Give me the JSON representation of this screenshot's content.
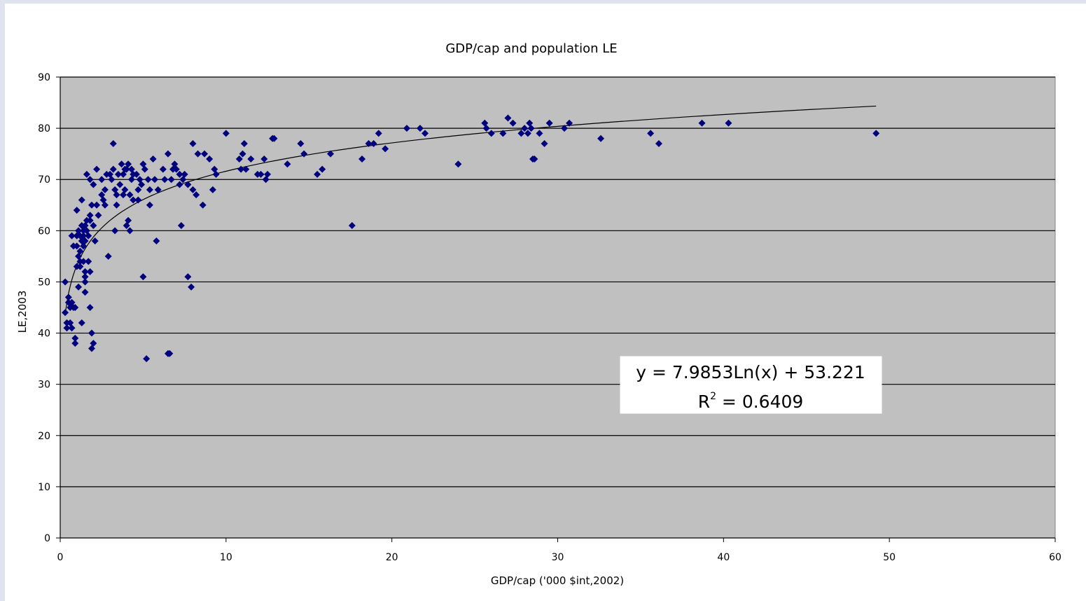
{
  "chart_data": {
    "type": "scatter",
    "title": "GDP/cap and population LE",
    "xlabel": "GDP/cap ('000 $int,2002)",
    "ylabel": "LE,2003",
    "xlim": [
      0,
      60
    ],
    "ylim": [
      0,
      90
    ],
    "x_ticks": [
      "0",
      "10",
      "20",
      "30",
      "40",
      "50",
      "60"
    ],
    "y_ticks": [
      "0",
      "10",
      "20",
      "30",
      "40",
      "50",
      "60",
      "70",
      "80",
      "90"
    ],
    "grid": "horizontal",
    "legend": "none",
    "colors": {
      "marker": "#00007f",
      "plot_bg": "#c0c0c0",
      "grid": "#000000",
      "trendline": "#000000"
    },
    "trendline": {
      "type": "logarithmic",
      "a": 7.9853,
      "b": 53.221,
      "r2": 0.6409,
      "equation_label": "y = 7.9853Ln(x) + 53.221",
      "r2_label_prefix": "R",
      "r2_label_exponent": "2",
      "r2_label_suffix": " = 0.6409"
    },
    "points": [
      [
        0.3,
        44
      ],
      [
        0.3,
        50
      ],
      [
        0.4,
        42
      ],
      [
        0.4,
        41
      ],
      [
        0.5,
        47
      ],
      [
        0.5,
        46
      ],
      [
        0.6,
        45
      ],
      [
        0.6,
        42
      ],
      [
        0.7,
        41
      ],
      [
        0.7,
        59
      ],
      [
        0.7,
        46
      ],
      [
        0.8,
        45
      ],
      [
        0.8,
        57
      ],
      [
        0.9,
        39
      ],
      [
        0.9,
        38
      ],
      [
        0.9,
        45
      ],
      [
        1.0,
        64
      ],
      [
        1.0,
        59
      ],
      [
        1.0,
        53
      ],
      [
        1.0,
        57
      ],
      [
        1.1,
        60
      ],
      [
        1.1,
        49
      ],
      [
        1.1,
        55
      ],
      [
        1.2,
        56
      ],
      [
        1.2,
        59
      ],
      [
        1.2,
        54
      ],
      [
        1.2,
        53
      ],
      [
        1.3,
        58
      ],
      [
        1.3,
        66
      ],
      [
        1.3,
        42
      ],
      [
        1.3,
        61
      ],
      [
        1.4,
        60
      ],
      [
        1.4,
        59
      ],
      [
        1.4,
        57
      ],
      [
        1.4,
        54
      ],
      [
        1.5,
        51
      ],
      [
        1.5,
        50
      ],
      [
        1.5,
        48
      ],
      [
        1.5,
        61
      ],
      [
        1.5,
        58
      ],
      [
        1.5,
        52
      ],
      [
        1.6,
        71
      ],
      [
        1.6,
        62
      ],
      [
        1.6,
        60
      ],
      [
        1.7,
        54
      ],
      [
        1.7,
        59
      ],
      [
        1.8,
        70
      ],
      [
        1.8,
        63
      ],
      [
        1.8,
        62
      ],
      [
        1.8,
        45
      ],
      [
        1.8,
        52
      ],
      [
        1.9,
        37
      ],
      [
        1.9,
        65
      ],
      [
        1.9,
        40
      ],
      [
        2.0,
        38
      ],
      [
        2.0,
        61
      ],
      [
        2.0,
        69
      ],
      [
        2.1,
        58
      ],
      [
        2.2,
        72
      ],
      [
        2.2,
        65
      ],
      [
        2.3,
        63
      ],
      [
        2.5,
        67
      ],
      [
        2.5,
        70
      ],
      [
        2.6,
        66
      ],
      [
        2.7,
        65
      ],
      [
        2.7,
        68
      ],
      [
        2.8,
        71
      ],
      [
        2.9,
        55
      ],
      [
        3.0,
        71
      ],
      [
        3.1,
        70
      ],
      [
        3.2,
        77
      ],
      [
        3.2,
        72
      ],
      [
        3.3,
        60
      ],
      [
        3.3,
        68
      ],
      [
        3.4,
        65
      ],
      [
        3.4,
        67
      ],
      [
        3.5,
        71
      ],
      [
        3.6,
        69
      ],
      [
        3.7,
        73
      ],
      [
        3.8,
        71
      ],
      [
        3.8,
        67
      ],
      [
        3.9,
        72
      ],
      [
        3.9,
        68
      ],
      [
        4.0,
        61
      ],
      [
        4.0,
        72
      ],
      [
        4.1,
        62
      ],
      [
        4.1,
        73
      ],
      [
        4.2,
        60
      ],
      [
        4.2,
        67
      ],
      [
        4.3,
        72
      ],
      [
        4.3,
        70
      ],
      [
        4.4,
        71
      ],
      [
        4.4,
        66
      ],
      [
        4.6,
        71
      ],
      [
        4.7,
        68
      ],
      [
        4.7,
        66
      ],
      [
        4.8,
        70
      ],
      [
        4.9,
        69
      ],
      [
        5.0,
        73
      ],
      [
        5.0,
        51
      ],
      [
        5.1,
        72
      ],
      [
        5.2,
        35
      ],
      [
        5.3,
        70
      ],
      [
        5.4,
        65
      ],
      [
        5.4,
        68
      ],
      [
        5.6,
        74
      ],
      [
        5.7,
        70
      ],
      [
        5.8,
        58
      ],
      [
        5.9,
        68
      ],
      [
        6.2,
        72
      ],
      [
        6.3,
        70
      ],
      [
        6.5,
        36
      ],
      [
        6.6,
        36
      ],
      [
        6.5,
        75
      ],
      [
        6.7,
        70
      ],
      [
        6.8,
        72
      ],
      [
        6.9,
        73
      ],
      [
        7.0,
        72
      ],
      [
        7.2,
        71
      ],
      [
        7.2,
        69
      ],
      [
        7.3,
        61
      ],
      [
        7.4,
        70
      ],
      [
        7.5,
        71
      ],
      [
        7.7,
        51
      ],
      [
        7.7,
        69
      ],
      [
        7.9,
        49
      ],
      [
        8.0,
        77
      ],
      [
        8.0,
        68
      ],
      [
        8.2,
        67
      ],
      [
        8.3,
        75
      ],
      [
        8.6,
        65
      ],
      [
        8.7,
        75
      ],
      [
        9.0,
        74
      ],
      [
        9.2,
        68
      ],
      [
        9.3,
        72
      ],
      [
        9.4,
        71
      ],
      [
        10.0,
        79
      ],
      [
        10.8,
        74
      ],
      [
        10.9,
        72
      ],
      [
        11.0,
        75
      ],
      [
        11.1,
        77
      ],
      [
        11.2,
        72
      ],
      [
        11.5,
        74
      ],
      [
        11.9,
        71
      ],
      [
        12.1,
        71
      ],
      [
        12.3,
        74
      ],
      [
        12.4,
        70
      ],
      [
        12.5,
        71
      ],
      [
        12.8,
        78
      ],
      [
        12.9,
        78
      ],
      [
        13.7,
        73
      ],
      [
        14.5,
        77
      ],
      [
        14.7,
        75
      ],
      [
        15.5,
        71
      ],
      [
        15.8,
        72
      ],
      [
        16.3,
        75
      ],
      [
        17.6,
        61
      ],
      [
        18.2,
        74
      ],
      [
        18.6,
        77
      ],
      [
        18.9,
        77
      ],
      [
        19.2,
        79
      ],
      [
        19.6,
        76
      ],
      [
        20.9,
        80
      ],
      [
        21.7,
        80
      ],
      [
        22.0,
        79
      ],
      [
        24.0,
        73
      ],
      [
        25.6,
        81
      ],
      [
        25.7,
        80
      ],
      [
        26.0,
        79
      ],
      [
        26.7,
        79
      ],
      [
        27.0,
        82
      ],
      [
        27.3,
        81
      ],
      [
        27.8,
        79
      ],
      [
        28.0,
        80
      ],
      [
        28.2,
        79
      ],
      [
        28.3,
        81
      ],
      [
        28.4,
        80
      ],
      [
        28.5,
        74
      ],
      [
        28.6,
        74
      ],
      [
        28.9,
        79
      ],
      [
        29.2,
        77
      ],
      [
        29.5,
        81
      ],
      [
        30.4,
        80
      ],
      [
        30.7,
        81
      ],
      [
        32.6,
        78
      ],
      [
        35.6,
        79
      ],
      [
        36.1,
        77
      ],
      [
        38.7,
        81
      ],
      [
        40.3,
        81
      ],
      [
        49.2,
        79
      ]
    ]
  }
}
